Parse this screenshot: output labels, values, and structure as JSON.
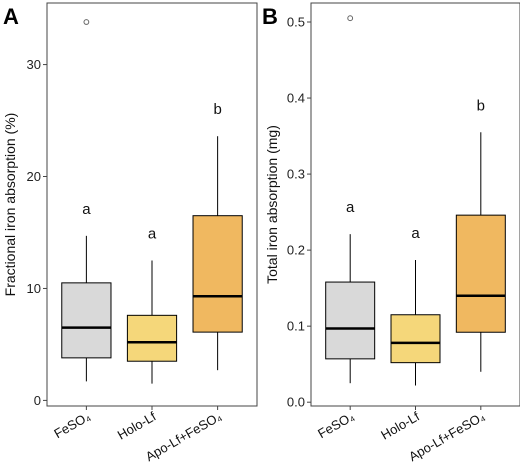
{
  "chart_data": [
    {
      "type": "boxplot",
      "panel": "A",
      "ylabel": "Fractional iron absorption (%)",
      "ylim": [
        -0.5,
        35.5
      ],
      "yticks": [
        0,
        10,
        20,
        30
      ],
      "categories": [
        "FeSO₄",
        "Holo-Lf",
        "Apo-Lf+FeSO₄"
      ],
      "boxes": [
        {
          "min": 1.7,
          "q1": 3.8,
          "median": 6.5,
          "q3": 10.5,
          "max": 14.7,
          "outliers": [
            33.8
          ],
          "letter": "a",
          "color": "#d9d9d9"
        },
        {
          "min": 1.5,
          "q1": 3.5,
          "median": 5.2,
          "q3": 7.6,
          "max": 12.5,
          "outliers": [],
          "letter": "a",
          "color": "#f5d77a"
        },
        {
          "min": 2.7,
          "q1": 6.1,
          "median": 9.3,
          "q3": 16.5,
          "max": 23.6,
          "outliers": [],
          "letter": "b",
          "color": "#f0b860"
        }
      ]
    },
    {
      "type": "boxplot",
      "panel": "B",
      "ylabel": "Total iron absorption (mg)",
      "ylim": [
        -0.005,
        0.525
      ],
      "yticks": [
        0.0,
        0.1,
        0.2,
        0.3,
        0.4,
        0.5
      ],
      "ytick_labels": [
        "0.0",
        "0.1",
        "0.2",
        "0.3",
        "0.4",
        "0.5"
      ],
      "categories": [
        "FeSO₄",
        "Holo-Lf",
        "Apo-Lf+FeSO₄"
      ],
      "boxes": [
        {
          "min": 0.025,
          "q1": 0.057,
          "median": 0.097,
          "q3": 0.158,
          "max": 0.221,
          "outliers": [
            0.505
          ],
          "letter": "a",
          "color": "#d9d9d9"
        },
        {
          "min": 0.022,
          "q1": 0.052,
          "median": 0.078,
          "q3": 0.115,
          "max": 0.187,
          "outliers": [],
          "letter": "a",
          "color": "#f5d77a"
        },
        {
          "min": 0.04,
          "q1": 0.092,
          "median": 0.14,
          "q3": 0.246,
          "max": 0.355,
          "outliers": [],
          "letter": "b",
          "color": "#f0b860"
        }
      ]
    }
  ]
}
